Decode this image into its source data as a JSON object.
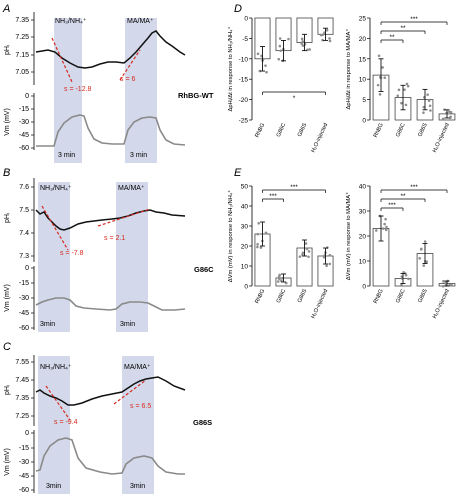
{
  "panels": {
    "A": {
      "letter": "A",
      "genotype": "RhBG-WT",
      "ph_label": "pHᵢ",
      "vm_label": "Vm (mV)",
      "ph_ticks": [
        "7.35",
        "7.25",
        "7.15",
        "7.05"
      ],
      "vm_ticks": [
        "0",
        "-15",
        "-30",
        "-45",
        "-60"
      ],
      "pulse1": "NH₃/NH₄⁺",
      "pulse2": "MA/MA⁺",
      "slope1": "s = -12.8",
      "slope2": "s = 6",
      "dur1": "3 min",
      "dur2": "3 min"
    },
    "B": {
      "letter": "B",
      "genotype": "G86C",
      "ph_label": "pHᵢ",
      "vm_label": "Vm (mV)",
      "ph_ticks": [
        "7.6",
        "7.5",
        "7.4",
        "7.3"
      ],
      "vm_ticks": [
        "0",
        "-15",
        "-30",
        "-45",
        "-60"
      ],
      "pulse1": "NH₃/NH₄⁺",
      "pulse2": "MA/MA⁺",
      "slope1": "s = -7.8",
      "slope2": "s = 2.1",
      "dur1": "3min",
      "dur2": "3min"
    },
    "C": {
      "letter": "C",
      "genotype": "G86S",
      "ph_label": "pHᵢ",
      "vm_label": "Vm (mV)",
      "ph_ticks": [
        "7.55",
        "7.45",
        "7.35",
        "7.25"
      ],
      "vm_ticks": [
        "0",
        "-15",
        "-30",
        "-45",
        "-60"
      ],
      "pulse1": "NH₃/NH₄⁺",
      "pulse2": "MA/MA⁺",
      "slope1": "s = -9.4",
      "slope2": "s = 6.5",
      "dur1": "3min",
      "dur2": "3min"
    }
  },
  "colors": {
    "trace_ph": "#111111",
    "trace_vm": "#8a8a8a",
    "shade": "#d3d8ea",
    "slope": "#d62a1f",
    "scatter": "#8e8e8e"
  },
  "chart_data": [
    {
      "id": "D-left",
      "type": "bar",
      "panel": "D",
      "ylabel": "ΔpHᵢ/Δt in response to NH₃/NH₄⁺",
      "ylim": [
        -25,
        0
      ],
      "yticks": [
        "0",
        "-5",
        "-10",
        "-15",
        "-20",
        "-25"
      ],
      "categories": [
        "RhBG",
        "G86C",
        "G86S",
        "H₂O-injected"
      ],
      "values": [
        -10,
        -8,
        -6,
        -4
      ],
      "errors": [
        3,
        2.5,
        2,
        1.5
      ],
      "significance": [
        {
          "from": 0,
          "to": 3,
          "label": "*"
        }
      ]
    },
    {
      "id": "D-right",
      "type": "bar",
      "panel": "D",
      "ylabel": "ΔpHᵢ/Δt in response to MA/MA⁺",
      "ylim": [
        0,
        25
      ],
      "yticks": [
        "25",
        "20",
        "15",
        "10",
        "5",
        "0"
      ],
      "categories": [
        "RhBG",
        "G86C",
        "G86S",
        "H₂O-injected"
      ],
      "values": [
        11,
        5.5,
        5,
        1.5
      ],
      "errors": [
        4,
        3,
        2.5,
        1
      ],
      "significance": [
        {
          "from": 0,
          "to": 1,
          "label": "**"
        },
        {
          "from": 0,
          "to": 2,
          "label": "**"
        },
        {
          "from": 0,
          "to": 3,
          "label": "***"
        }
      ]
    },
    {
      "id": "E-left",
      "type": "bar",
      "panel": "E",
      "ylabel": "ΔVm (mV) in response to NH₃/NH₄⁺",
      "ylim": [
        0,
        50
      ],
      "yticks": [
        "50",
        "40",
        "30",
        "20",
        "10",
        "0"
      ],
      "categories": [
        "RhBG",
        "G86C",
        "G86S",
        "H₂O-injected"
      ],
      "values": [
        26,
        4,
        19,
        15
      ],
      "errors": [
        6,
        2,
        4,
        4
      ],
      "significance": [
        {
          "from": 0,
          "to": 1,
          "label": "***"
        },
        {
          "from": 0,
          "to": 3,
          "label": "***"
        }
      ]
    },
    {
      "id": "E-right",
      "type": "bar",
      "panel": "E",
      "ylabel": "ΔVm (mV) in response to MA/MA⁺",
      "ylim": [
        0,
        40
      ],
      "yticks": [
        "40",
        "30",
        "20",
        "10",
        "0"
      ],
      "categories": [
        "RhBG",
        "G86C",
        "G86S",
        "H₂O-injected"
      ],
      "values": [
        23,
        3,
        13,
        1
      ],
      "errors": [
        5,
        2,
        4,
        1
      ],
      "significance": [
        {
          "from": 0,
          "to": 1,
          "label": "***"
        },
        {
          "from": 0,
          "to": 2,
          "label": "**"
        },
        {
          "from": 0,
          "to": 3,
          "label": "***"
        }
      ]
    }
  ],
  "panel_letters": {
    "D": "D",
    "E": "E"
  }
}
